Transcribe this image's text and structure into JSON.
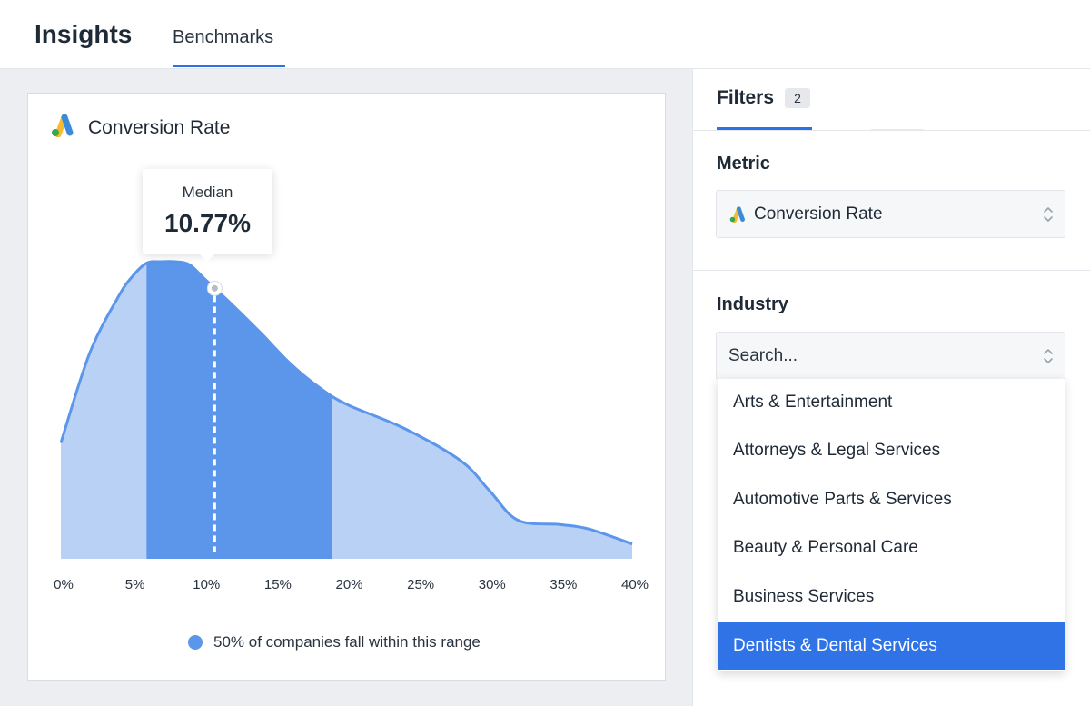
{
  "header": {
    "title": "Insights",
    "tabs": [
      {
        "label": "Benchmarks",
        "active": true
      }
    ]
  },
  "card": {
    "title": "Conversion Rate",
    "icon": "google-ads-icon",
    "tooltip": {
      "label": "Median",
      "value": "10.77%"
    },
    "legend": "50% of companies fall within this range"
  },
  "chart_data": {
    "type": "area",
    "title": "Conversion Rate",
    "xlabel": "",
    "ylabel": "",
    "x_tick_labels": [
      "0%",
      "5%",
      "10%",
      "15%",
      "20%",
      "25%",
      "30%",
      "35%",
      "40%"
    ],
    "xlim": [
      0,
      40
    ],
    "ylim": [
      0,
      1
    ],
    "x": [
      0,
      2,
      4,
      5,
      6,
      7,
      8,
      9,
      10,
      11,
      12,
      14,
      16,
      18,
      20,
      24,
      28,
      30,
      32,
      35,
      37,
      40
    ],
    "values": [
      0.39,
      0.69,
      0.88,
      0.95,
      0.995,
      1.0,
      1.0,
      0.99,
      0.945,
      0.9,
      0.855,
      0.76,
      0.66,
      0.58,
      0.52,
      0.44,
      0.33,
      0.23,
      0.13,
      0.115,
      0.1,
      0.05
    ],
    "highlight_range": [
      6,
      19
    ],
    "median": 10.77,
    "grid": false,
    "colors": {
      "line": "#5b96eb",
      "fill": "#b9d1f5",
      "highlight": "#5b96eb",
      "median_line": "#ffffff"
    }
  },
  "filters": {
    "tab_label": "Filters",
    "count": "2",
    "metric": {
      "title": "Metric",
      "value": "Conversion Rate",
      "icon": "google-ads-icon"
    },
    "industry": {
      "title": "Industry",
      "placeholder": "Search...",
      "options": [
        {
          "label": "Arts & Entertainment",
          "selected": false
        },
        {
          "label": "Attorneys & Legal Services",
          "selected": false
        },
        {
          "label": "Automotive Parts & Services",
          "selected": false
        },
        {
          "label": "Beauty & Personal Care",
          "selected": false
        },
        {
          "label": "Business Services",
          "selected": false
        },
        {
          "label": "Dentists & Dental Services",
          "selected": true
        }
      ]
    }
  },
  "colors": {
    "accent": "#2b72e6",
    "selected_row": "#2f73e6"
  }
}
